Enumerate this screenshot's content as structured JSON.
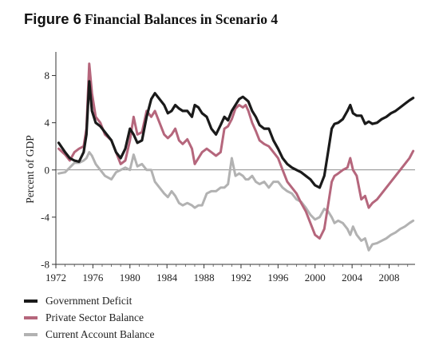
{
  "figure": {
    "number": "Figure 6",
    "title": "Financial Balances in Scenario 4"
  },
  "chart_data": {
    "type": "line",
    "title": "Financial Balances in Scenario 4",
    "xlabel": "",
    "ylabel": "Percent of GDP",
    "xlim": [
      1972,
      2010.8
    ],
    "ylim": [
      -8,
      10
    ],
    "xticks": [
      1972,
      1976,
      1980,
      1984,
      1988,
      1992,
      1996,
      2000,
      2004,
      2008
    ],
    "yticks": [
      -8,
      -4,
      0,
      4,
      8
    ],
    "grid": false,
    "legend_position": "bottom-left",
    "series": [
      {
        "name": "Government Deficit",
        "color": "#1a1a1a",
        "x": [
          1972.3,
          1973,
          1973.5,
          1974,
          1974.5,
          1975,
          1975.3,
          1975.6,
          1975.9,
          1976.3,
          1976.8,
          1977.3,
          1978,
          1978.5,
          1979,
          1979.5,
          1980,
          1980.4,
          1980.8,
          1981.3,
          1981.8,
          1982.3,
          1982.7,
          1983.2,
          1983.7,
          1984.1,
          1984.5,
          1984.9,
          1985.3,
          1985.7,
          1986.2,
          1986.7,
          1987,
          1987.4,
          1987.8,
          1988.3,
          1988.8,
          1989.3,
          1989.8,
          1990.2,
          1990.6,
          1991,
          1991.4,
          1991.8,
          1992.2,
          1992.5,
          1992.8,
          1993.2,
          1993.6,
          1994,
          1994.5,
          1995,
          1995.5,
          1996,
          1996.5,
          1997,
          1997.5,
          1998,
          1998.5,
          1999,
          1999.5,
          2000,
          2000.5,
          2001,
          2001.4,
          2001.8,
          2002.1,
          2002.5,
          2003,
          2003.5,
          2003.8,
          2004.1,
          2004.5,
          2005,
          2005.4,
          2005.8,
          2006.2,
          2006.7,
          2007.2,
          2007.7,
          2008.2,
          2008.7,
          2009.2,
          2009.7,
          2010.2,
          2010.6
        ],
        "values": [
          2.3,
          1.5,
          1.0,
          0.8,
          0.7,
          1.5,
          3.0,
          7.5,
          5.0,
          4.0,
          3.7,
          3.2,
          2.5,
          1.5,
          1.0,
          1.8,
          3.5,
          3.0,
          2.3,
          2.5,
          4.5,
          6.0,
          6.5,
          6.0,
          5.5,
          4.8,
          5.0,
          5.5,
          5.2,
          5.0,
          5.0,
          4.5,
          5.5,
          5.3,
          4.8,
          4.5,
          3.5,
          3.0,
          3.8,
          4.5,
          4.2,
          5.0,
          5.5,
          6.0,
          6.2,
          6.0,
          5.8,
          5.0,
          4.5,
          3.8,
          3.5,
          3.5,
          2.5,
          1.8,
          1.0,
          0.5,
          0.2,
          0.0,
          -0.2,
          -0.5,
          -0.8,
          -1.3,
          -1.5,
          -0.5,
          1.5,
          3.5,
          3.9,
          4.0,
          4.3,
          5.0,
          5.5,
          4.8,
          4.6,
          4.6,
          3.9,
          4.1,
          3.9,
          4.0,
          4.3,
          4.5,
          4.8,
          5.0,
          5.3,
          5.6,
          5.9,
          6.1
        ]
      },
      {
        "name": "Private Sector Balance",
        "color": "#b5667c",
        "x": [
          1972.3,
          1973,
          1973.5,
          1974,
          1974.5,
          1975,
          1975.3,
          1975.6,
          1975.9,
          1976.3,
          1976.8,
          1977.3,
          1978,
          1978.5,
          1979,
          1979.5,
          1980,
          1980.4,
          1980.8,
          1981.3,
          1981.8,
          1982.3,
          1982.7,
          1983.2,
          1983.7,
          1984.1,
          1984.5,
          1984.9,
          1985.3,
          1985.7,
          1986.2,
          1986.7,
          1987,
          1987.4,
          1987.8,
          1988.3,
          1988.8,
          1989.3,
          1989.8,
          1990.2,
          1990.6,
          1991,
          1991.4,
          1991.8,
          1992.2,
          1992.5,
          1992.8,
          1993.2,
          1993.6,
          1994,
          1994.5,
          1995,
          1995.5,
          1996,
          1996.5,
          1997,
          1997.5,
          1998,
          1998.5,
          1999,
          1999.5,
          2000,
          2000.5,
          2001,
          2001.4,
          2001.8,
          2002.1,
          2002.5,
          2003,
          2003.5,
          2003.8,
          2004.1,
          2004.5,
          2005,
          2005.4,
          2005.8,
          2006.2,
          2006.7,
          2007.2,
          2007.7,
          2008.2,
          2008.7,
          2009.2,
          2009.7,
          2010.2,
          2010.6
        ],
        "values": [
          1.8,
          1.3,
          0.8,
          1.5,
          1.8,
          2.0,
          3.5,
          9.0,
          6.5,
          4.5,
          4.0,
          3.0,
          2.5,
          1.5,
          0.5,
          0.8,
          2.5,
          4.5,
          3.0,
          3.2,
          5.0,
          4.5,
          5.0,
          4.0,
          3.0,
          2.7,
          3.0,
          3.5,
          2.5,
          2.2,
          2.6,
          1.8,
          0.5,
          1.0,
          1.5,
          1.8,
          1.5,
          1.2,
          1.5,
          3.5,
          3.7,
          4.3,
          5.2,
          5.5,
          5.3,
          5.5,
          5.0,
          4.0,
          3.3,
          2.5,
          2.2,
          2.0,
          1.5,
          1.0,
          0.0,
          -1.0,
          -1.5,
          -2.0,
          -2.8,
          -3.5,
          -4.5,
          -5.5,
          -5.8,
          -5.0,
          -3.0,
          -1.0,
          -0.5,
          -0.3,
          0.0,
          0.2,
          1.0,
          0.0,
          -0.5,
          -2.5,
          -2.2,
          -3.2,
          -2.8,
          -2.5,
          -2.0,
          -1.5,
          -1.0,
          -0.5,
          0.0,
          0.5,
          1.0,
          1.6
        ]
      },
      {
        "name": "Current Account Balance",
        "color": "#b2b2b2",
        "x": [
          1972.3,
          1973,
          1973.5,
          1974,
          1974.5,
          1975,
          1975.3,
          1975.6,
          1975.9,
          1976.3,
          1976.8,
          1977.3,
          1978,
          1978.5,
          1979,
          1979.5,
          1980,
          1980.4,
          1980.8,
          1981.3,
          1981.8,
          1982.3,
          1982.7,
          1983.2,
          1983.7,
          1984.1,
          1984.5,
          1984.9,
          1985.3,
          1985.7,
          1986.2,
          1986.7,
          1987,
          1987.4,
          1987.8,
          1988.3,
          1988.8,
          1989.3,
          1989.8,
          1990.2,
          1990.6,
          1991,
          1991.4,
          1991.8,
          1992.2,
          1992.5,
          1992.8,
          1993.2,
          1993.6,
          1994,
          1994.5,
          1995,
          1995.5,
          1996,
          1996.5,
          1997,
          1997.5,
          1998,
          1998.5,
          1999,
          1999.5,
          2000,
          2000.5,
          2001,
          2001.4,
          2001.8,
          2002.1,
          2002.5,
          2003,
          2003.5,
          2003.8,
          2004.1,
          2004.5,
          2005,
          2005.4,
          2005.8,
          2006.2,
          2006.7,
          2007.2,
          2007.7,
          2008.2,
          2008.7,
          2009.2,
          2009.7,
          2010.2,
          2010.6
        ],
        "values": [
          -0.3,
          -0.2,
          0.2,
          0.6,
          0.6,
          0.8,
          1.0,
          1.5,
          1.2,
          0.5,
          0.0,
          -0.5,
          -0.8,
          -0.2,
          0.0,
          0.2,
          0.0,
          1.3,
          0.3,
          0.5,
          0.0,
          0.0,
          -1.0,
          -1.5,
          -2.0,
          -2.3,
          -1.8,
          -2.2,
          -2.8,
          -3.0,
          -2.8,
          -3.0,
          -3.2,
          -3.0,
          -3.0,
          -2.0,
          -1.8,
          -1.8,
          -1.5,
          -1.5,
          -1.2,
          1.0,
          -0.5,
          -0.3,
          -0.5,
          -0.8,
          -0.8,
          -0.5,
          -1.0,
          -1.2,
          -1.0,
          -1.5,
          -1.0,
          -1.0,
          -1.5,
          -1.8,
          -2.0,
          -2.5,
          -2.7,
          -3.2,
          -3.8,
          -4.2,
          -4.0,
          -3.3,
          -3.5,
          -4.0,
          -4.5,
          -4.3,
          -4.5,
          -5.0,
          -5.5,
          -4.8,
          -5.5,
          -6.0,
          -5.8,
          -6.8,
          -6.3,
          -6.2,
          -6.0,
          -5.8,
          -5.5,
          -5.3,
          -5.0,
          -4.8,
          -4.5,
          -4.3
        ]
      }
    ]
  }
}
